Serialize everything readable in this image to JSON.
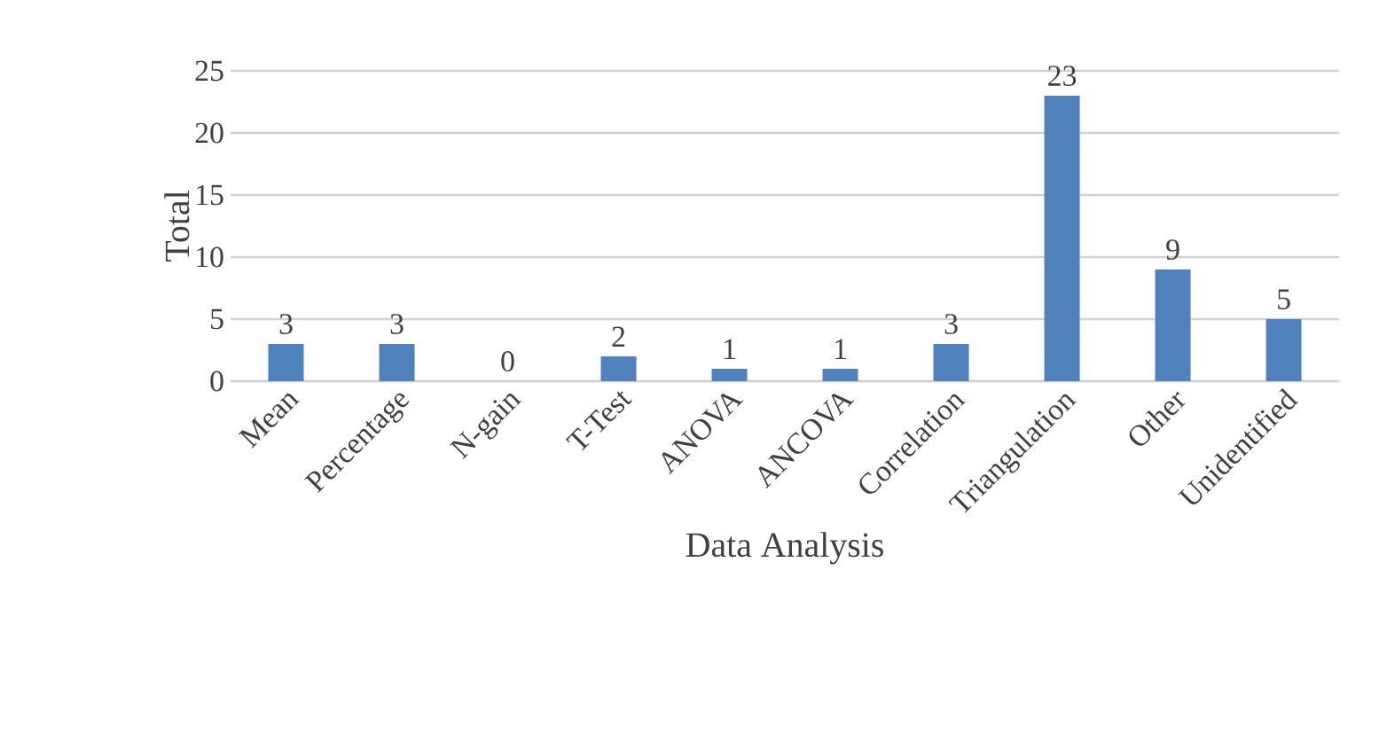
{
  "chart_data": {
    "type": "bar",
    "xlabel": "Data Analysis",
    "ylabel": "Total",
    "categories": [
      "Mean",
      "Percentage",
      "N-gain",
      "T-Test",
      "ANOVA",
      "ANCOVA",
      "Correlation",
      "Triangulation",
      "Other",
      "Unidentified"
    ],
    "values": [
      3,
      3,
      0,
      2,
      1,
      1,
      3,
      23,
      9,
      5
    ],
    "color": "#4f81bd",
    "ylim": [
      0,
      25
    ],
    "yticks": [
      0,
      5,
      10,
      15,
      20,
      25
    ],
    "grid": "y",
    "data_labels": true
  }
}
